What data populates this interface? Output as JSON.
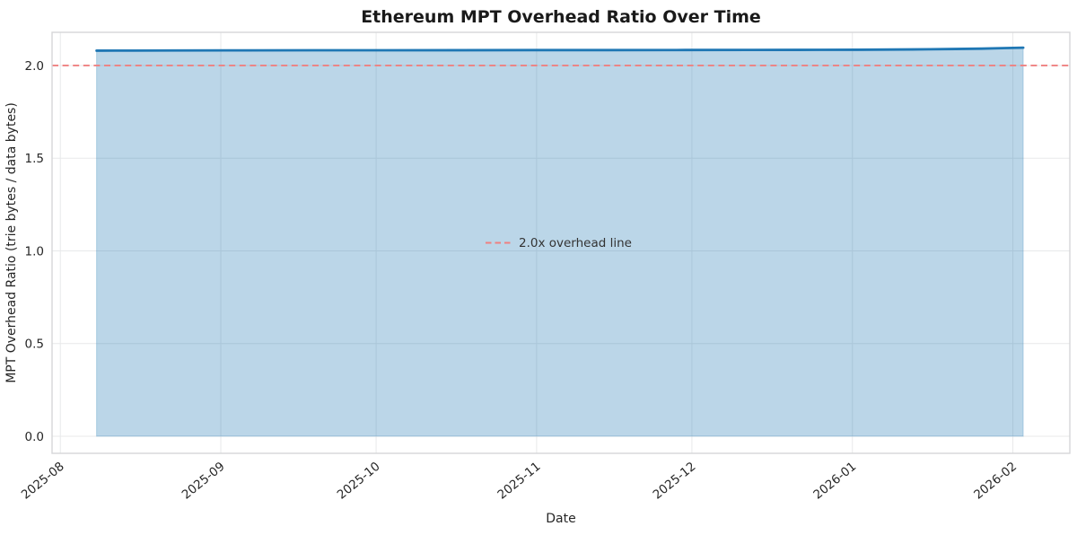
{
  "figure": {
    "background": "#ffffff",
    "plot_background": "#ffffff",
    "grid_color": "#e8e9ea",
    "spine_color": "#d5d6d8"
  },
  "chart_data": {
    "type": "area",
    "title": "Ethereum MPT Overhead Ratio Over Time",
    "xlabel": "Date",
    "ylabel": "MPT Overhead Ratio (trie bytes / data bytes)",
    "grid": true,
    "legend_position": "center",
    "x_unit": "days since 2025-08-01",
    "xlim": [
      -1.6,
      195
    ],
    "ylim": [
      -0.092,
      2.179
    ],
    "x_ticks": [
      {
        "day": 0,
        "label": "2025-08"
      },
      {
        "day": 31,
        "label": "2025-09"
      },
      {
        "day": 61,
        "label": "2025-10"
      },
      {
        "day": 92,
        "label": "2025-11"
      },
      {
        "day": 122,
        "label": "2025-12"
      },
      {
        "day": 153,
        "label": "2026-01"
      },
      {
        "day": 184,
        "label": "2026-02"
      }
    ],
    "y_ticks": [
      {
        "value": 0.0,
        "label": "0.0"
      },
      {
        "value": 0.5,
        "label": "0.5"
      },
      {
        "value": 1.0,
        "label": "1.0"
      },
      {
        "value": 1.5,
        "label": "1.5"
      },
      {
        "value": 2.0,
        "label": "2.0"
      }
    ],
    "series": [
      {
        "name": "MPT overhead ratio",
        "color": "#1f77b4",
        "fill_alpha": 0.3,
        "fill_to": 0,
        "points": [
          [
            7,
            2.08
          ],
          [
            14,
            2.0805
          ],
          [
            21,
            2.081
          ],
          [
            35,
            2.0815
          ],
          [
            49,
            2.082
          ],
          [
            63,
            2.082
          ],
          [
            77,
            2.0825
          ],
          [
            91,
            2.083
          ],
          [
            105,
            2.083
          ],
          [
            119,
            2.0835
          ],
          [
            133,
            2.084
          ],
          [
            147,
            2.0845
          ],
          [
            154,
            2.085
          ],
          [
            161,
            2.086
          ],
          [
            168,
            2.0875
          ],
          [
            173,
            2.089
          ],
          [
            178,
            2.091
          ],
          [
            182,
            2.0935
          ],
          [
            186,
            2.096
          ]
        ]
      }
    ],
    "reference_line": {
      "value": 2.0,
      "label": "2.0x overhead line",
      "color": "#ef8080",
      "style": "dashed"
    }
  }
}
